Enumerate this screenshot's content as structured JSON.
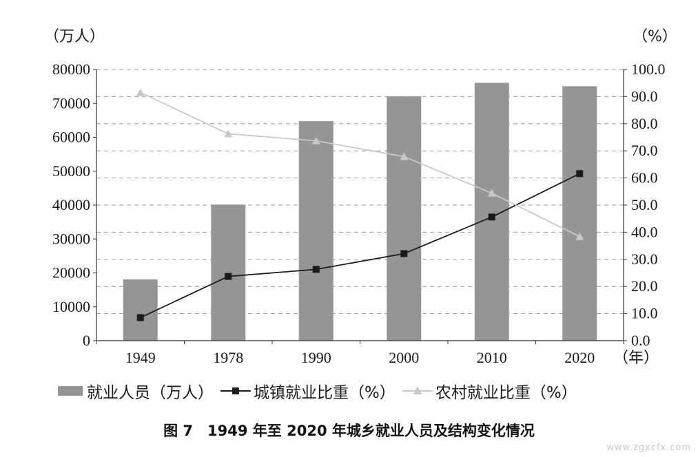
{
  "chart_data": {
    "type": "bar",
    "categories": [
      "1949",
      "1978",
      "1990",
      "2000",
      "2010",
      "2020"
    ],
    "series": [
      {
        "name": "就业人员（万人）",
        "type": "bar",
        "axis": "left",
        "values": [
          18082,
          40152,
          64749,
          72085,
          76105,
          75064
        ],
        "color": "#959595"
      },
      {
        "name": "城镇就业比重（%）",
        "type": "line",
        "axis": "right",
        "marker": "square",
        "values": [
          8.5,
          23.7,
          26.3,
          32.1,
          45.6,
          61.6
        ],
        "color": "#1a1a1a"
      },
      {
        "name": "农村就业比重（%）",
        "type": "line",
        "axis": "right",
        "marker": "triangle",
        "values": [
          91.5,
          76.3,
          73.7,
          67.9,
          54.4,
          38.4
        ],
        "color": "#c8c8c8"
      }
    ],
    "left_axis": {
      "label": "（万人）",
      "ylim": [
        0,
        80000
      ],
      "ticks": [
        "0",
        "10000",
        "20000",
        "30000",
        "40000",
        "50000",
        "60000",
        "70000",
        "80000"
      ]
    },
    "right_axis": {
      "label": "（%）",
      "ylim": [
        0,
        100
      ],
      "ticks": [
        "0.0",
        "10.0",
        "20.0",
        "30.0",
        "40.0",
        "50.0",
        "60.0",
        "70.0",
        "80.0",
        "90.0",
        "100.0"
      ]
    },
    "x_unit": "（年）",
    "grid": "dashed horizontal",
    "legend_position": "bottom"
  },
  "legend": {
    "bar": "就业人员（万人）",
    "urban": "城镇就业比重（%）",
    "rural": "农村就业比重（%）"
  },
  "caption": "图 7　1949 年至 2020 年城乡就业人员及结构变化情况",
  "watermark": "www.zgxcfx.com"
}
